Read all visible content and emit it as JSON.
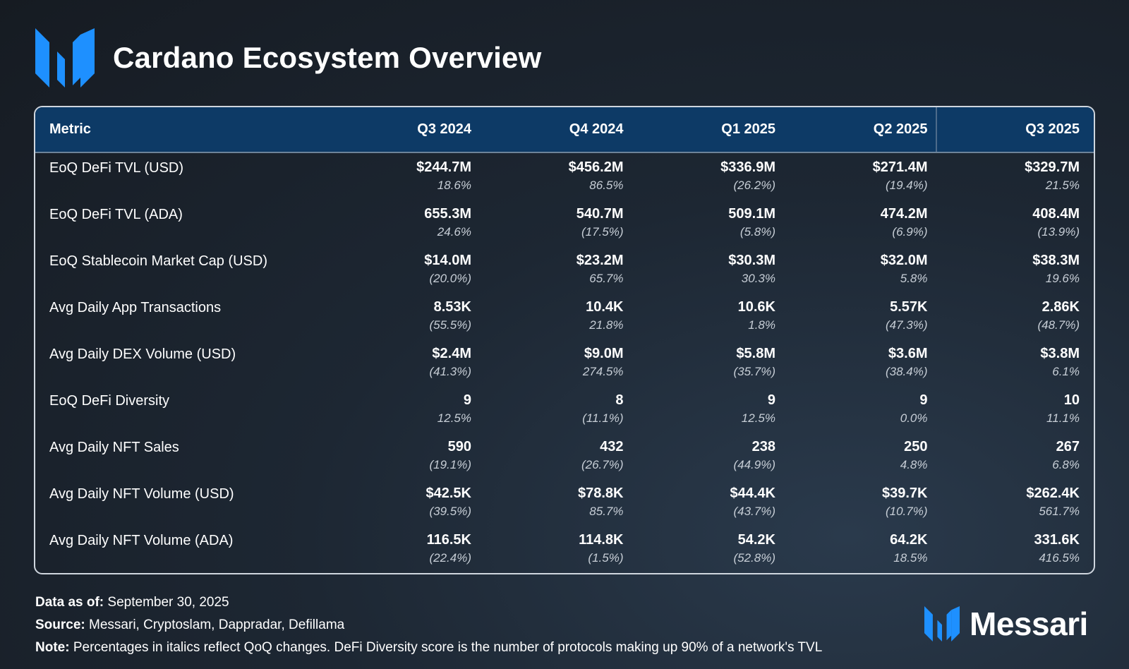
{
  "colors": {
    "accent": "#1e90ff",
    "header_bg": "#0d3a66",
    "background": "#1a222c"
  },
  "header": {
    "title": "Cardano Ecosystem Overview",
    "logo_icon": "messari-logo-icon"
  },
  "table": {
    "columns": [
      "Metric",
      "Q3 2024",
      "Q4 2024",
      "Q1 2025",
      "Q2 2025",
      "Q3 2025"
    ],
    "rows": [
      {
        "metric": "EoQ DeFi TVL (USD)",
        "values": [
          "$244.7M",
          "$456.2M",
          "$336.9M",
          "$271.4M",
          "$329.7M"
        ],
        "changes": [
          "18.6%",
          "86.5%",
          "(26.2%)",
          "(19.4%)",
          "21.5%"
        ]
      },
      {
        "metric": "EoQ DeFi TVL (ADA)",
        "values": [
          "655.3M",
          "540.7M",
          "509.1M",
          "474.2M",
          "408.4M"
        ],
        "changes": [
          "24.6%",
          "(17.5%)",
          "(5.8%)",
          "(6.9%)",
          "(13.9%)"
        ]
      },
      {
        "metric": "EoQ Stablecoin Market Cap (USD)",
        "values": [
          "$14.0M",
          "$23.2M",
          "$30.3M",
          "$32.0M",
          "$38.3M"
        ],
        "changes": [
          "(20.0%)",
          "65.7%",
          "30.3%",
          "5.8%",
          "19.6%"
        ]
      },
      {
        "metric": "Avg Daily App Transactions",
        "values": [
          "8.53K",
          "10.4K",
          "10.6K",
          "5.57K",
          "2.86K"
        ],
        "changes": [
          "(55.5%)",
          "21.8%",
          "1.8%",
          "(47.3%)",
          "(48.7%)"
        ]
      },
      {
        "metric": "Avg Daily DEX Volume (USD)",
        "values": [
          "$2.4M",
          "$9.0M",
          "$5.8M",
          "$3.6M",
          "$3.8M"
        ],
        "changes": [
          "(41.3%)",
          "274.5%",
          "(35.7%)",
          "(38.4%)",
          "6.1%"
        ]
      },
      {
        "metric": "EoQ DeFi Diversity",
        "values": [
          "9",
          "8",
          "9",
          "9",
          "10"
        ],
        "changes": [
          "12.5%",
          "(11.1%)",
          "12.5%",
          "0.0%",
          "11.1%"
        ]
      },
      {
        "metric": "Avg Daily NFT Sales",
        "values": [
          "590",
          "432",
          "238",
          "250",
          "267"
        ],
        "changes": [
          "(19.1%)",
          "(26.7%)",
          "(44.9%)",
          "4.8%",
          "6.8%"
        ]
      },
      {
        "metric": "Avg Daily NFT Volume (USD)",
        "values": [
          "$42.5K",
          "$78.8K",
          "$44.4K",
          "$39.7K",
          "$262.4K"
        ],
        "changes": [
          "(39.5%)",
          "85.7%",
          "(43.7%)",
          "(10.7%)",
          "561.7%"
        ]
      },
      {
        "metric": "Avg Daily NFT Volume (ADA)",
        "values": [
          "116.5K",
          "114.8K",
          "54.2K",
          "64.2K",
          "331.6K"
        ],
        "changes": [
          "(22.4%)",
          "(1.5%)",
          "(52.8%)",
          "18.5%",
          "416.5%"
        ]
      }
    ]
  },
  "footer": {
    "data_as_of_label": "Data as of:",
    "data_as_of_value": "September 30, 2025",
    "source_label": "Source:",
    "source_value": "Messari, Cryptoslam, Dappradar, Defillama",
    "note_label": "Note:",
    "note_value": "Percentages in italics reflect QoQ changes. DeFi Diversity score is the number of protocols making up 90% of a network's TVL"
  },
  "brand": {
    "name": "Messari",
    "icon": "messari-logo-icon"
  }
}
